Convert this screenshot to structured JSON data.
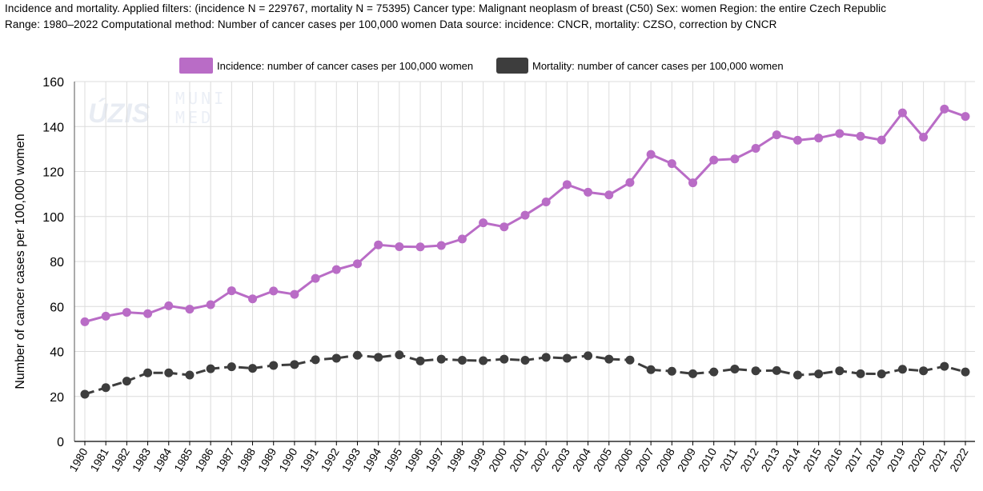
{
  "header": {
    "line1": "Incidence and mortality. Applied filters: (incidence N = 229767, mortality N = 75395) Cancer type: Malignant neoplasm of breast (C50) Sex: women Region: the entire Czech Republic",
    "line2": "Range: 1980–2022 Computational method: Number of cancer cases per 100,000 women Data source: incidence: CNCR, mortality: CZSO, correction by CNCR"
  },
  "watermark": {
    "uzis": "ÚZIS",
    "muni_top": "MUNI",
    "muni_bottom": "MED"
  },
  "colors": {
    "incidence": "#b96cc6",
    "mortality": "#3d3d3d",
    "grid": "#dcdcdc"
  },
  "chart_data": {
    "type": "line",
    "title": "",
    "xlabel": "",
    "ylabel": "Number of cancer cases per 100,000 women",
    "ylim": [
      0,
      160
    ],
    "yticks": [
      0,
      20,
      40,
      60,
      80,
      100,
      120,
      140,
      160
    ],
    "grid": true,
    "legend_position": "top-center",
    "categories": [
      "1980",
      "1981",
      "1982",
      "1983",
      "1984",
      "1985",
      "1986",
      "1987",
      "1988",
      "1989",
      "1990",
      "1991",
      "1992",
      "1993",
      "1994",
      "1995",
      "1996",
      "1997",
      "1998",
      "1999",
      "2000",
      "2001",
      "2002",
      "2003",
      "2004",
      "2005",
      "2006",
      "2007",
      "2008",
      "2009",
      "2010",
      "2011",
      "2012",
      "2013",
      "2014",
      "2015",
      "2016",
      "2017",
      "2018",
      "2019",
      "2020",
      "2021",
      "2022"
    ],
    "series": [
      {
        "name": "Incidence: number of cancer cases per 100,000 women",
        "style": "solid",
        "color": "#b96cc6",
        "values": [
          53.2,
          55.7,
          57.4,
          56.8,
          60.3,
          58.8,
          60.8,
          67.0,
          63.4,
          66.9,
          65.4,
          72.5,
          76.4,
          79.0,
          87.4,
          86.6,
          86.5,
          87.1,
          90.0,
          97.2,
          95.4,
          100.6,
          106.5,
          114.2,
          110.8,
          109.6,
          115.1,
          127.6,
          123.5,
          115.0,
          125.1,
          125.6,
          130.3,
          136.3,
          133.9,
          134.9,
          136.9,
          135.7,
          134.0,
          146.1,
          135.3,
          147.8,
          144.5
        ]
      },
      {
        "name": "Mortality: number of cancer cases per 100,000 women",
        "style": "dashed",
        "color": "#3d3d3d",
        "values": [
          21.0,
          23.9,
          26.8,
          30.5,
          30.5,
          29.5,
          32.3,
          33.2,
          32.5,
          33.8,
          34.2,
          36.3,
          37.0,
          38.3,
          37.4,
          38.5,
          35.8,
          36.6,
          36.1,
          35.9,
          36.6,
          36.1,
          37.4,
          37.0,
          38.1,
          36.6,
          36.2,
          31.9,
          31.2,
          30.1,
          30.9,
          32.2,
          31.4,
          31.5,
          29.5,
          30.0,
          31.4,
          30.1,
          30.0,
          32.1,
          31.4,
          33.4,
          30.9
        ]
      }
    ]
  }
}
